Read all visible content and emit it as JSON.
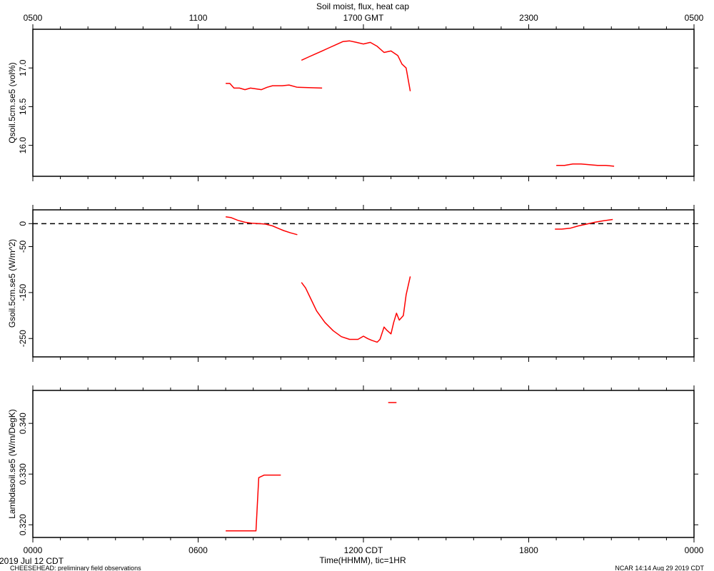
{
  "title": "Soil moist, flux, heat cap",
  "footer": {
    "date_left": "2019 Jul 12 CDT",
    "project_left": "CHEESEHEAD: preliminary field observations",
    "credit_right": "NCAR 14:14 Aug 29 2019 CDT",
    "time_axis_label": "Time(HHMM), tic=1HR"
  },
  "colors": {
    "series": "#ff0000",
    "axes": "#000000",
    "zero_line": "#000000"
  },
  "chart_data": [
    {
      "type": "line",
      "title": "Soil moist, flux, heat cap",
      "ylabel": "Qsoil.5cm.se5 (vol%)",
      "ylim": [
        15.6,
        17.5
      ],
      "xlim_hours_cdt": [
        0,
        24
      ],
      "top_xticklabels": [
        "0500",
        "1100",
        "1700 GMT",
        "2300",
        "0500"
      ],
      "yticks": [
        16.0,
        16.5,
        17.0
      ],
      "ytick_labels": [
        "16.0",
        "16.5",
        "17.0"
      ],
      "series": [
        {
          "x": [
            7.0,
            7.15,
            7.3,
            7.5,
            7.7,
            7.9,
            8.1,
            8.3,
            8.5,
            8.7,
            8.85,
            9.05,
            9.3,
            9.6
          ],
          "y": [
            16.8,
            16.8,
            16.74,
            16.74,
            16.72,
            16.74,
            16.73,
            16.72,
            16.75,
            16.77,
            16.77,
            16.77,
            16.78,
            16.75
          ]
        },
        {
          "x": [
            9.6,
            10.5
          ],
          "y": [
            16.75,
            16.74
          ]
        },
        {
          "x": [
            9.75,
            10.0,
            10.25,
            10.5,
            10.75,
            11.0,
            11.25,
            11.5,
            11.75,
            12.0,
            12.25,
            12.5,
            12.75,
            13.0,
            13.25,
            13.4,
            13.55,
            13.7
          ],
          "y": [
            17.1,
            17.14,
            17.18,
            17.22,
            17.26,
            17.3,
            17.34,
            17.35,
            17.33,
            17.31,
            17.33,
            17.28,
            17.2,
            17.22,
            17.16,
            17.05,
            17.0,
            16.7
          ]
        },
        {
          "x": [
            19.0,
            19.3,
            19.6,
            19.9,
            20.2,
            20.5,
            20.8,
            21.1
          ],
          "y": [
            15.74,
            15.74,
            15.76,
            15.76,
            15.75,
            15.74,
            15.74,
            15.73
          ]
        }
      ]
    },
    {
      "type": "line",
      "ylabel": "Gsoil.5cm.se5 (W/m^2)",
      "ylim": [
        -290,
        30
      ],
      "yticks": [
        0,
        -50,
        -150,
        -250
      ],
      "ytick_labels": [
        "0",
        "-50",
        "-150",
        "-250"
      ],
      "reference_line_y": 0,
      "series": [
        {
          "x": [
            7.0,
            7.2,
            7.45,
            7.7,
            7.95,
            8.2,
            8.45,
            8.7,
            8.9,
            9.1,
            9.35,
            9.6
          ],
          "y": [
            15,
            13,
            7,
            3,
            1,
            0,
            -1,
            -5,
            -10,
            -15,
            -20,
            -24
          ]
        },
        {
          "x": [
            9.75,
            9.9,
            10.1,
            10.3,
            10.6,
            10.9,
            11.2,
            11.5,
            11.8,
            12.0,
            12.15,
            12.3,
            12.5,
            12.6,
            12.75,
            12.85,
            13.0,
            13.1,
            13.2,
            13.3,
            13.45,
            13.55,
            13.7
          ],
          "y": [
            -128,
            -140,
            -165,
            -190,
            -215,
            -233,
            -246,
            -252,
            -252,
            -245,
            -250,
            -254,
            -258,
            -252,
            -225,
            -232,
            -240,
            -215,
            -195,
            -210,
            -200,
            -155,
            -115
          ]
        },
        {
          "x": [
            18.95,
            19.2,
            19.5,
            19.8,
            20.1,
            20.4,
            20.7,
            21.05
          ],
          "y": [
            -12,
            -12,
            -10,
            -5,
            -1,
            3,
            6,
            9
          ]
        }
      ]
    },
    {
      "type": "line",
      "ylabel": "Lambdasoil.se5 (W/m/DegK)",
      "ylim": [
        0.3175,
        0.3465
      ],
      "xticks": [
        0,
        6,
        12,
        18,
        24
      ],
      "xtick_labels": [
        "0000",
        "0600",
        "1200 CDT",
        "1800",
        "0000"
      ],
      "yticks": [
        0.32,
        0.33,
        0.34
      ],
      "ytick_labels": [
        "0.320",
        "0.330",
        "0.340"
      ],
      "series": [
        {
          "x": [
            7.0,
            8.1,
            8.2,
            8.4,
            9.0
          ],
          "y": [
            0.3188,
            0.3188,
            0.3293,
            0.3298,
            0.3298
          ]
        },
        {
          "x": [
            12.9,
            13.2
          ],
          "y": [
            0.3441,
            0.3441
          ]
        }
      ]
    }
  ]
}
